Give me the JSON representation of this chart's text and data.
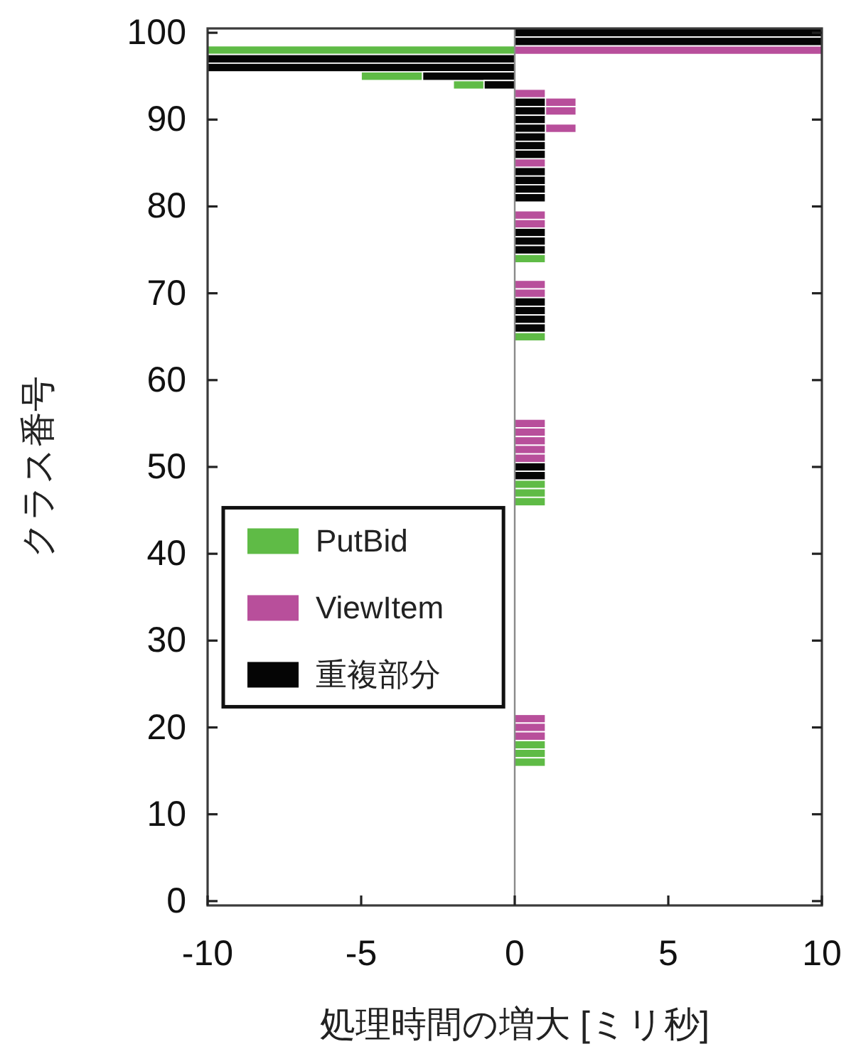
{
  "chart_data": {
    "type": "bar",
    "orientation": "horizontal",
    "xlabel": "処理時間の増大 [ミリ秒]",
    "ylabel": "クラス番号",
    "xlim": [
      -10,
      10
    ],
    "xticks": [
      -10,
      -5,
      0,
      5,
      10
    ],
    "ylim": [
      -0.5,
      100.5
    ],
    "yticks": [
      0,
      10,
      20,
      30,
      40,
      50,
      60,
      70,
      80,
      90,
      100
    ],
    "legend": "left",
    "ref_lines": [
      {
        "axis": "x",
        "value": 0,
        "color": "#8a8a8a"
      }
    ],
    "series": [
      {
        "name": "PutBid",
        "color": "#5fbb46",
        "x": [
          98,
          95,
          94,
          74,
          65,
          48,
          47,
          46,
          18,
          17,
          16
        ],
        "base": [
          0,
          -3,
          -1,
          0,
          0,
          0,
          0,
          0,
          0,
          0,
          0
        ],
        "values": [
          -10,
          -2,
          -1,
          1,
          1,
          1,
          1,
          1,
          1,
          1,
          1
        ]
      },
      {
        "name": "ViewItem",
        "color": "#b84f9b",
        "x": [
          98,
          93,
          92,
          91,
          89,
          85,
          79,
          78,
          71,
          70,
          55,
          54,
          53,
          52,
          51,
          21,
          20,
          19
        ],
        "base": [
          0,
          0,
          1,
          1,
          1,
          0,
          0,
          0,
          0,
          0,
          0,
          0,
          0,
          0,
          0,
          0,
          0,
          0
        ],
        "values": [
          10,
          1,
          1,
          1,
          1,
          1,
          1,
          1,
          1,
          1,
          1,
          1,
          1,
          1,
          1,
          1,
          1,
          1
        ]
      },
      {
        "name": "重複部分",
        "color": "#050505",
        "x": [
          100,
          99,
          97,
          96,
          95,
          94,
          92,
          91,
          90,
          89,
          88,
          87,
          86,
          84,
          83,
          82,
          81,
          77,
          76,
          75,
          69,
          68,
          67,
          66,
          50,
          49
        ],
        "values": [
          10,
          10,
          -10,
          -10,
          -3,
          -1,
          1,
          1,
          1,
          1,
          1,
          1,
          1,
          1,
          1,
          1,
          1,
          1,
          1,
          1,
          1,
          1,
          1,
          1,
          1,
          1
        ]
      }
    ]
  }
}
